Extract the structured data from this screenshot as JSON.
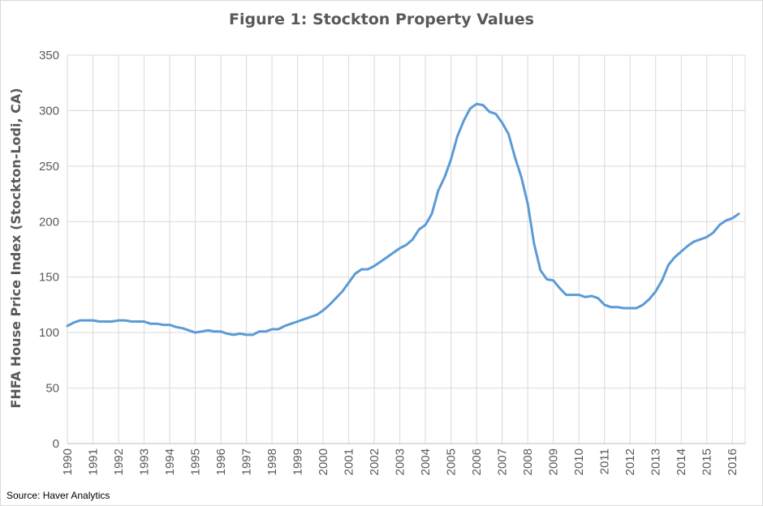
{
  "chart_data": {
    "type": "line",
    "title": "Figure 1: Stockton Property Values",
    "xlabel": "",
    "ylabel": "FHFA House Price Index (Stockton-Lodi,  CA)",
    "source": "Source: Haver Analytics",
    "ylim": [
      0,
      350
    ],
    "xlim": [
      1990,
      2016.5
    ],
    "yticks": [
      0,
      50,
      100,
      150,
      200,
      250,
      300,
      350
    ],
    "xticks": [
      1990,
      1991,
      1992,
      1993,
      1994,
      1995,
      1996,
      1997,
      1998,
      1999,
      2000,
      2001,
      2002,
      2003,
      2004,
      2005,
      2006,
      2007,
      2008,
      2009,
      2010,
      2011,
      2012,
      2013,
      2014,
      2015,
      2016
    ],
    "grid": "vertical-and-horizontal",
    "legend": "none",
    "line_color": "#5b9bd5",
    "series": [
      {
        "x": [
          1990.0,
          1990.25,
          1990.5,
          1990.75,
          1991.0,
          1991.25,
          1991.5,
          1991.75,
          1992.0,
          1992.25,
          1992.5,
          1992.75,
          1993.0,
          1993.25,
          1993.5,
          1993.75,
          1994.0,
          1994.25,
          1994.5,
          1994.75,
          1995.0,
          1995.25,
          1995.5,
          1995.75,
          1996.0,
          1996.25,
          1996.5,
          1996.75,
          1997.0,
          1997.25,
          1997.5,
          1997.75,
          1998.0,
          1998.25,
          1998.5,
          1998.75,
          1999.0,
          1999.25,
          1999.5,
          1999.75,
          2000.0,
          2000.25,
          2000.5,
          2000.75,
          2001.0,
          2001.25,
          2001.5,
          2001.75,
          2002.0,
          2002.25,
          2002.5,
          2002.75,
          2003.0,
          2003.25,
          2003.5,
          2003.75,
          2004.0,
          2004.25,
          2004.5,
          2004.75,
          2005.0,
          2005.25,
          2005.5,
          2005.75,
          2006.0,
          2006.25,
          2006.5,
          2006.75,
          2007.0,
          2007.25,
          2007.5,
          2007.75,
          2008.0,
          2008.25,
          2008.5,
          2008.75,
          2009.0,
          2009.25,
          2009.5,
          2009.75,
          2010.0,
          2010.25,
          2010.5,
          2010.75,
          2011.0,
          2011.25,
          2011.5,
          2011.75,
          2012.0,
          2012.25,
          2012.5,
          2012.75,
          2013.0,
          2013.25,
          2013.5,
          2013.75,
          2014.0,
          2014.25,
          2014.5,
          2014.75,
          2015.0,
          2015.25,
          2015.5,
          2015.75,
          2016.0,
          2016.25
        ],
        "values": [
          106,
          109,
          111,
          111,
          111,
          110,
          110,
          110,
          111,
          111,
          110,
          110,
          110,
          108,
          108,
          107,
          107,
          105,
          104,
          102,
          100,
          101,
          102,
          101,
          101,
          99,
          98,
          99,
          98,
          98,
          101,
          101,
          103,
          103,
          106,
          108,
          110,
          112,
          114,
          116,
          120,
          125,
          131,
          137,
          145,
          153,
          157,
          157,
          160,
          164,
          168,
          172,
          176,
          179,
          184,
          193,
          197,
          207,
          228,
          240,
          256,
          277,
          291,
          302,
          306,
          305,
          299,
          297,
          289,
          279,
          258,
          240,
          216,
          180,
          156,
          148,
          147,
          140,
          134,
          134,
          134,
          132,
          133,
          131,
          125,
          123,
          123,
          122,
          122,
          122,
          125,
          130,
          137,
          147,
          161,
          168,
          173,
          178,
          182,
          184,
          186,
          190,
          197,
          201,
          203,
          207
        ]
      }
    ]
  }
}
